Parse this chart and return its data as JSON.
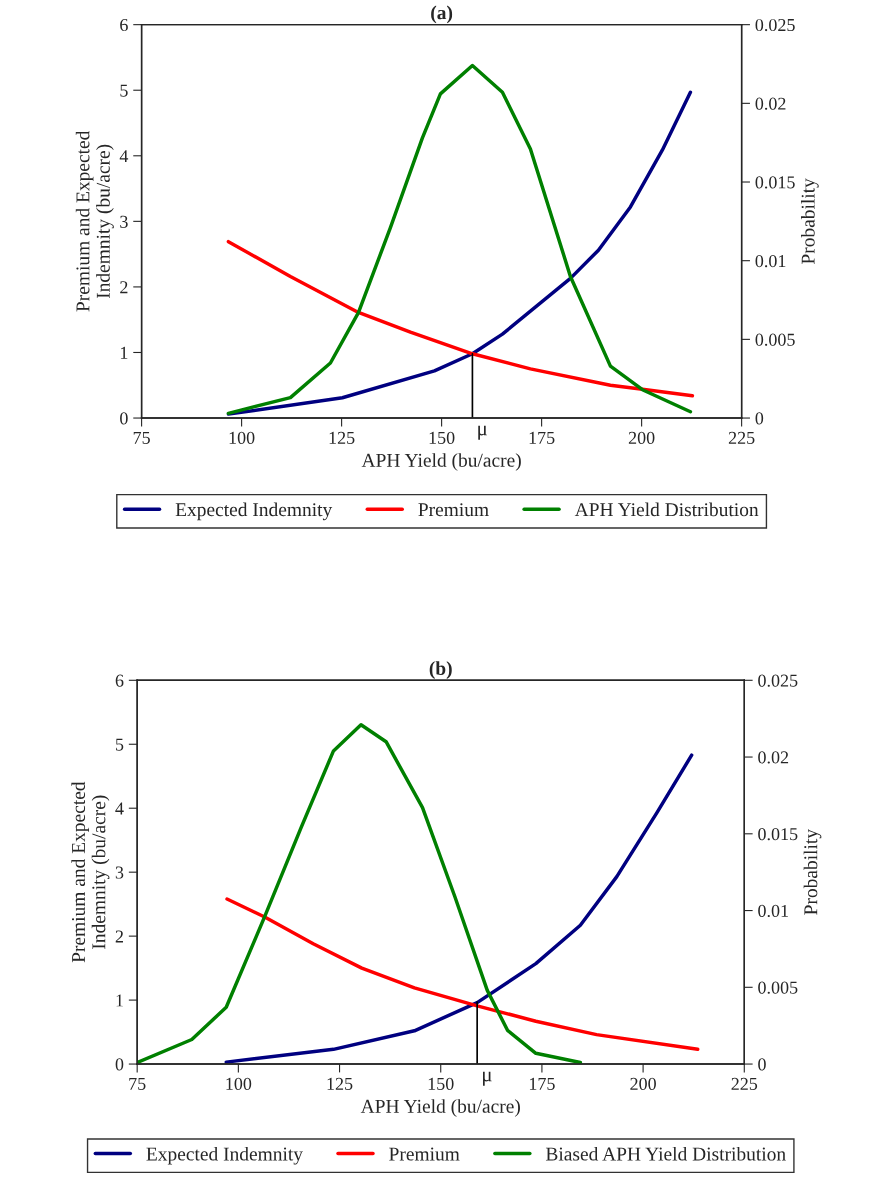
{
  "chart_data": [
    {
      "type": "line",
      "title": "(a)",
      "xlabel": "APH Yield (bu/acre)",
      "ylabel": "Premium and Expected\nIndemnity (bu/acre)",
      "y2label": "Probability",
      "xlim": [
        75,
        225
      ],
      "xticks": [
        75,
        100,
        125,
        150,
        175,
        200,
        225
      ],
      "ylim": [
        0,
        6
      ],
      "yticks": [
        0,
        1,
        2,
        3,
        4,
        5,
        6
      ],
      "y2lim": [
        0,
        0.025
      ],
      "y2ticks": [
        0,
        0.005,
        0.01,
        0.015,
        0.02,
        0.025
      ],
      "legend": "bottom",
      "grid": false,
      "marker": "none",
      "line_style": "solid",
      "annotations": [
        {
          "text": "μ",
          "x": 157.7,
          "y": 0.98
        }
      ],
      "series": [
        {
          "name": "Expected Indemnity",
          "color": "#000080",
          "x": [
            96.7,
            125.2,
            148.2,
            157.7,
            165.2,
            182.2,
            189.2,
            197.2,
            205.2,
            212.2
          ],
          "values": [
            0.06,
            0.31,
            0.72,
            0.98,
            1.28,
            2.13,
            2.56,
            3.22,
            4.09,
            4.97
          ]
        },
        {
          "name": "Premium",
          "color": "#ff0000",
          "x": [
            96.7,
            112.2,
            129.2,
            142.2,
            157.7,
            172.2,
            192.2,
            200.2,
            212.7
          ],
          "values": [
            2.69,
            2.16,
            1.61,
            1.31,
            0.98,
            0.75,
            0.5,
            0.44,
            0.34
          ]
        },
        {
          "name": "APH Yield Distribution",
          "color": "#008000",
          "axis": "y2",
          "x": [
            96.7,
            112.2,
            122.2,
            129.2,
            137.2,
            145.2,
            149.7,
            157.7,
            165.2,
            172.2,
            182.2,
            192.2,
            200.2,
            212.2
          ],
          "values": [
            0.0003,
            0.0013,
            0.0035,
            0.0067,
            0.0121,
            0.0178,
            0.0206,
            0.0224,
            0.0207,
            0.0171,
            0.009,
            0.0033,
            0.0018,
            0.0004
          ]
        }
      ]
    },
    {
      "type": "line",
      "title": "(b)",
      "xlabel": "APH Yield (bu/acre)",
      "ylabel": "Premium and Expected\nIndemnity (bu/acre)",
      "y2label": "Probability",
      "xlim": [
        75,
        225
      ],
      "xticks": [
        75,
        100,
        125,
        150,
        175,
        200,
        225
      ],
      "ylim": [
        0,
        6
      ],
      "yticks": [
        0,
        1,
        2,
        3,
        4,
        5,
        6
      ],
      "y2lim": [
        0,
        0.025
      ],
      "y2ticks": [
        0,
        0.005,
        0.01,
        0.015,
        0.02,
        0.025
      ],
      "legend": "bottom",
      "grid": false,
      "marker": "none",
      "line_style": "solid",
      "annotations": [
        {
          "text": "μ",
          "x": 159,
          "y": 0.97
        }
      ],
      "series": [
        {
          "name": "Expected Indemnity",
          "color": "#000080",
          "x": [
            97,
            123.5,
            143.5,
            159,
            173.5,
            184.5,
            193.5,
            203.5,
            212
          ],
          "values": [
            0.03,
            0.23,
            0.52,
            0.96,
            1.57,
            2.17,
            2.93,
            3.94,
            4.83
          ]
        },
        {
          "name": "Premium",
          "color": "#ff0000",
          "x": [
            97.2,
            106.5,
            118.5,
            130.5,
            143.5,
            159,
            173.5,
            188.5,
            213.5
          ],
          "values": [
            2.58,
            2.3,
            1.88,
            1.5,
            1.19,
            0.91,
            0.67,
            0.46,
            0.23
          ]
        },
        {
          "name": "Biased APH Yield Distribution",
          "color": "#008000",
          "axis": "y2",
          "x": [
            75,
            88.5,
            97,
            106.5,
            115.5,
            123.5,
            130.3,
            136.5,
            145.5,
            153.5,
            161.5,
            166.5,
            173.5,
            184.5
          ],
          "values": [
            0.0001,
            0.0016,
            0.0037,
            0.0096,
            0.0154,
            0.0204,
            0.0221,
            0.021,
            0.0167,
            0.0109,
            0.0048,
            0.0022,
            0.0007,
            0.0001
          ]
        }
      ]
    }
  ]
}
